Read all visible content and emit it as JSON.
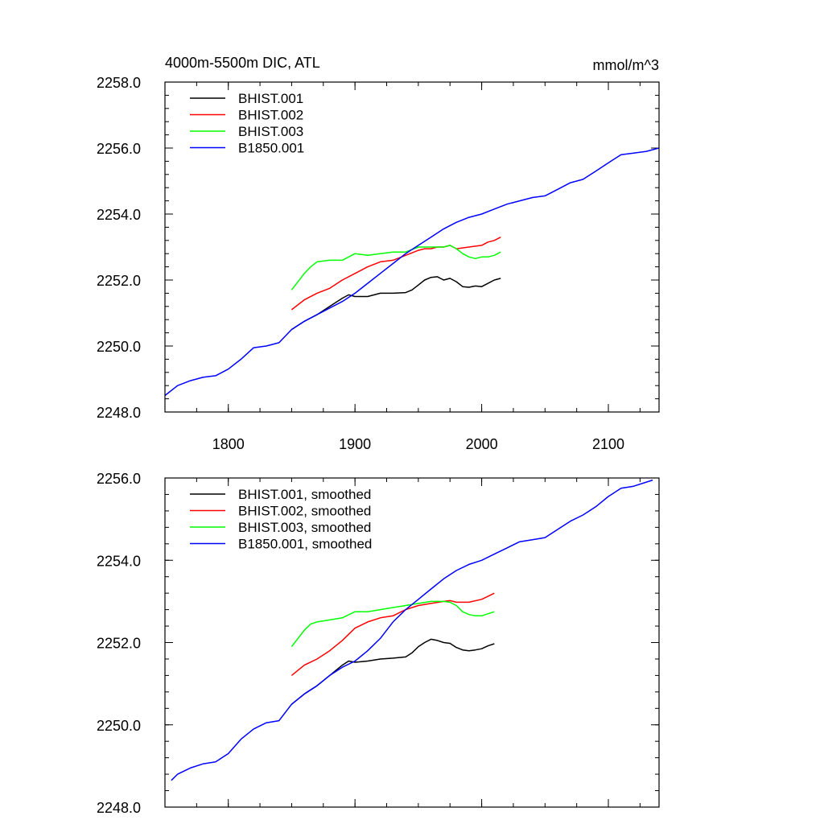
{
  "chart_data": [
    {
      "type": "line",
      "title": "4000m-5500m DIC, ATL",
      "units": "mmol/m^3",
      "xlim": [
        1750,
        2140
      ],
      "ylim": [
        2248.0,
        2258.0
      ],
      "xticks": [
        1800,
        1900,
        2000,
        2100
      ],
      "xtick_labels": [
        "1800",
        "1900",
        "2000",
        "2100"
      ],
      "yticks": [
        2248.0,
        2250.0,
        2252.0,
        2254.0,
        2256.0,
        2258.0
      ],
      "ytick_labels": [
        "2248.0",
        "2250.0",
        "2252.0",
        "2254.0",
        "2256.0",
        "2258.0"
      ],
      "legend_position": "top-left",
      "series": [
        {
          "name": "BHIST.001",
          "color": "#000000",
          "x": [
            1850,
            1860,
            1870,
            1880,
            1890,
            1895,
            1900,
            1910,
            1920,
            1930,
            1940,
            1945,
            1950,
            1955,
            1960,
            1965,
            1970,
            1975,
            1980,
            1985,
            1990,
            1995,
            2000,
            2005,
            2010,
            2015
          ],
          "y": [
            2250.5,
            2250.75,
            2250.95,
            2251.2,
            2251.45,
            2251.55,
            2251.5,
            2251.5,
            2251.6,
            2251.6,
            2251.62,
            2251.7,
            2251.85,
            2252.0,
            2252.08,
            2252.1,
            2252.0,
            2252.05,
            2251.95,
            2251.8,
            2251.78,
            2251.82,
            2251.8,
            2251.9,
            2252.0,
            2252.05
          ]
        },
        {
          "name": "BHIST.002",
          "color": "#ff0000",
          "x": [
            1850,
            1860,
            1870,
            1880,
            1890,
            1900,
            1910,
            1920,
            1930,
            1940,
            1950,
            1955,
            1960,
            1965,
            1970,
            1975,
            1980,
            1990,
            2000,
            2005,
            2010,
            2015
          ],
          "y": [
            2251.1,
            2251.4,
            2251.6,
            2251.75,
            2252.0,
            2252.2,
            2252.4,
            2252.55,
            2252.6,
            2252.75,
            2252.9,
            2252.95,
            2252.95,
            2253.0,
            2253.0,
            2253.05,
            2252.95,
            2253.0,
            2253.05,
            2253.15,
            2253.2,
            2253.3
          ]
        },
        {
          "name": "BHIST.003",
          "color": "#00ff00",
          "x": [
            1850,
            1855,
            1860,
            1865,
            1870,
            1880,
            1890,
            1900,
            1910,
            1920,
            1930,
            1940,
            1950,
            1960,
            1970,
            1975,
            1980,
            1985,
            1990,
            1995,
            2000,
            2005,
            2010,
            2015
          ],
          "y": [
            2251.7,
            2251.95,
            2252.2,
            2252.4,
            2252.55,
            2252.6,
            2252.6,
            2252.8,
            2252.75,
            2252.8,
            2252.85,
            2252.85,
            2253.0,
            2253.0,
            2253.0,
            2253.05,
            2252.95,
            2252.8,
            2252.7,
            2252.65,
            2252.7,
            2252.7,
            2252.75,
            2252.85
          ]
        },
        {
          "name": "B1850.001",
          "color": "#0000ff",
          "x": [
            1750,
            1760,
            1770,
            1780,
            1790,
            1800,
            1810,
            1820,
            1830,
            1840,
            1850,
            1860,
            1870,
            1880,
            1890,
            1900,
            1910,
            1920,
            1930,
            1940,
            1950,
            1960,
            1970,
            1980,
            1990,
            2000,
            2010,
            2020,
            2030,
            2040,
            2050,
            2060,
            2070,
            2080,
            2090,
            2100,
            2110,
            2120,
            2130,
            2140
          ],
          "y": [
            2248.5,
            2248.8,
            2248.95,
            2249.05,
            2249.1,
            2249.3,
            2249.6,
            2249.95,
            2250.0,
            2250.1,
            2250.5,
            2250.75,
            2250.95,
            2251.15,
            2251.35,
            2251.6,
            2251.9,
            2252.2,
            2252.5,
            2252.8,
            2253.05,
            2253.3,
            2253.55,
            2253.75,
            2253.9,
            2254.0,
            2254.15,
            2254.3,
            2254.4,
            2254.5,
            2254.55,
            2254.75,
            2254.95,
            2255.05,
            2255.3,
            2255.55,
            2255.8,
            2255.85,
            2255.9,
            2256.0
          ]
        }
      ]
    },
    {
      "type": "line",
      "title": "",
      "units": "",
      "xlim": [
        1750,
        2140
      ],
      "ylim": [
        2248.0,
        2256.0
      ],
      "xticks": [
        1800,
        1900,
        2000,
        2100
      ],
      "xtick_labels": [],
      "yticks": [
        2248.0,
        2250.0,
        2252.0,
        2254.0,
        2256.0
      ],
      "ytick_labels": [
        "2248.0",
        "2250.0",
        "2252.0",
        "2254.0",
        "2256.0"
      ],
      "legend_position": "top-left",
      "series": [
        {
          "name": "BHIST.001, smoothed",
          "color": "#000000",
          "x": [
            1850,
            1860,
            1870,
            1880,
            1890,
            1895,
            1900,
            1910,
            1920,
            1930,
            1940,
            1945,
            1950,
            1955,
            1960,
            1965,
            1970,
            1975,
            1980,
            1985,
            1990,
            1995,
            2000,
            2005,
            2010
          ],
          "y": [
            2250.5,
            2250.75,
            2250.95,
            2251.2,
            2251.45,
            2251.55,
            2251.52,
            2251.55,
            2251.6,
            2251.62,
            2251.65,
            2251.75,
            2251.9,
            2252.0,
            2252.08,
            2252.05,
            2252.0,
            2251.98,
            2251.88,
            2251.82,
            2251.8,
            2251.82,
            2251.85,
            2251.92,
            2251.97
          ]
        },
        {
          "name": "BHIST.002, smoothed",
          "color": "#ff0000",
          "x": [
            1850,
            1860,
            1870,
            1880,
            1890,
            1900,
            1910,
            1920,
            1930,
            1940,
            1950,
            1960,
            1970,
            1975,
            1980,
            1990,
            2000,
            2010
          ],
          "y": [
            2251.2,
            2251.45,
            2251.6,
            2251.8,
            2252.05,
            2252.35,
            2252.5,
            2252.6,
            2252.65,
            2252.8,
            2252.9,
            2252.95,
            2253.0,
            2253.02,
            2252.98,
            2252.98,
            2253.05,
            2253.2
          ]
        },
        {
          "name": "BHIST.003, smoothed",
          "color": "#00ff00",
          "x": [
            1850,
            1855,
            1860,
            1865,
            1870,
            1880,
            1890,
            1900,
            1910,
            1920,
            1930,
            1940,
            1950,
            1960,
            1970,
            1975,
            1980,
            1985,
            1990,
            1995,
            2000,
            2005,
            2010
          ],
          "y": [
            2251.9,
            2252.1,
            2252.3,
            2252.45,
            2252.5,
            2252.55,
            2252.6,
            2252.75,
            2252.75,
            2252.8,
            2252.85,
            2252.9,
            2252.95,
            2253.0,
            2253.0,
            2252.98,
            2252.9,
            2252.75,
            2252.68,
            2252.65,
            2252.65,
            2252.7,
            2252.75
          ]
        },
        {
          "name": "B1850.001, smoothed",
          "color": "#0000ff",
          "x": [
            1755,
            1760,
            1770,
            1780,
            1790,
            1800,
            1810,
            1820,
            1830,
            1840,
            1850,
            1860,
            1870,
            1880,
            1890,
            1900,
            1910,
            1920,
            1930,
            1940,
            1950,
            1960,
            1970,
            1980,
            1990,
            2000,
            2010,
            2020,
            2030,
            2040,
            2050,
            2060,
            2070,
            2080,
            2090,
            2100,
            2110,
            2120,
            2130,
            2135
          ],
          "y": [
            2248.65,
            2248.8,
            2248.95,
            2249.05,
            2249.1,
            2249.3,
            2249.65,
            2249.9,
            2250.05,
            2250.1,
            2250.5,
            2250.75,
            2250.95,
            2251.2,
            2251.4,
            2251.55,
            2251.8,
            2252.1,
            2252.5,
            2252.8,
            2253.05,
            2253.3,
            2253.55,
            2253.75,
            2253.9,
            2254.0,
            2254.15,
            2254.3,
            2254.45,
            2254.5,
            2254.55,
            2254.75,
            2254.95,
            2255.1,
            2255.3,
            2255.55,
            2255.75,
            2255.8,
            2255.9,
            2255.95
          ]
        }
      ]
    }
  ]
}
